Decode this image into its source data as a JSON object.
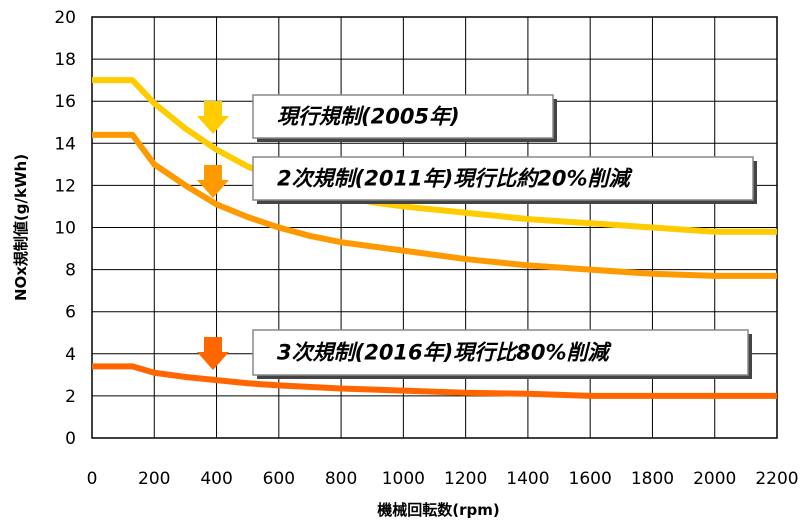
{
  "chart_data": {
    "type": "line",
    "xlabel": "機械回転数(rpm)",
    "ylabel": "NOx規制値(g/kWh)",
    "xlim": [
      0,
      2200
    ],
    "ylim": [
      0,
      20
    ],
    "xticks": [
      0,
      200,
      400,
      600,
      800,
      1000,
      1200,
      1400,
      1600,
      1800,
      2000,
      2200
    ],
    "yticks": [
      0,
      2,
      4,
      6,
      8,
      10,
      12,
      14,
      16,
      18,
      20
    ],
    "grid": true,
    "series": [
      {
        "name": "現行規制(2005年)",
        "color": "#ffcc00",
        "x": [
          0,
          130,
          200,
          300,
          400,
          500,
          600,
          700,
          800,
          900,
          1000,
          1200,
          1400,
          1600,
          1800,
          2000,
          2200
        ],
        "y": [
          17.0,
          17.0,
          15.9,
          14.7,
          13.7,
          12.9,
          12.3,
          11.8,
          11.5,
          11.2,
          11.0,
          10.7,
          10.4,
          10.2,
          10.0,
          9.8,
          9.8
        ]
      },
      {
        "name": "2次規制(2011年)現行比約20%削減",
        "color": "#ff9900",
        "x": [
          0,
          130,
          200,
          300,
          400,
          500,
          600,
          700,
          800,
          900,
          1000,
          1200,
          1400,
          1600,
          1800,
          2000,
          2200
        ],
        "y": [
          14.4,
          14.4,
          13.0,
          12.0,
          11.1,
          10.5,
          10.0,
          9.6,
          9.3,
          9.1,
          8.9,
          8.5,
          8.2,
          8.0,
          7.8,
          7.7,
          7.7
        ]
      },
      {
        "name": "3次規制(2016年)現行比80%削減",
        "color": "#ff6600",
        "x": [
          0,
          130,
          200,
          300,
          400,
          500,
          600,
          800,
          1000,
          1200,
          1400,
          1600,
          1800,
          2000,
          2200
        ],
        "y": [
          3.4,
          3.4,
          3.1,
          2.9,
          2.75,
          2.6,
          2.5,
          2.35,
          2.25,
          2.15,
          2.1,
          2.0,
          2.0,
          2.0,
          2.0
        ]
      }
    ],
    "annotations": [
      {
        "text": "現行規制(2005年)",
        "series": 0,
        "arrow_color": "#ffcc00"
      },
      {
        "text": "2次規制(2011年)現行比約20%削減",
        "series": 1,
        "arrow_color": "#ff9900"
      },
      {
        "text": "3次規制(2016年)現行比80%削減",
        "series": 2,
        "arrow_color": "#ff6600"
      }
    ]
  }
}
